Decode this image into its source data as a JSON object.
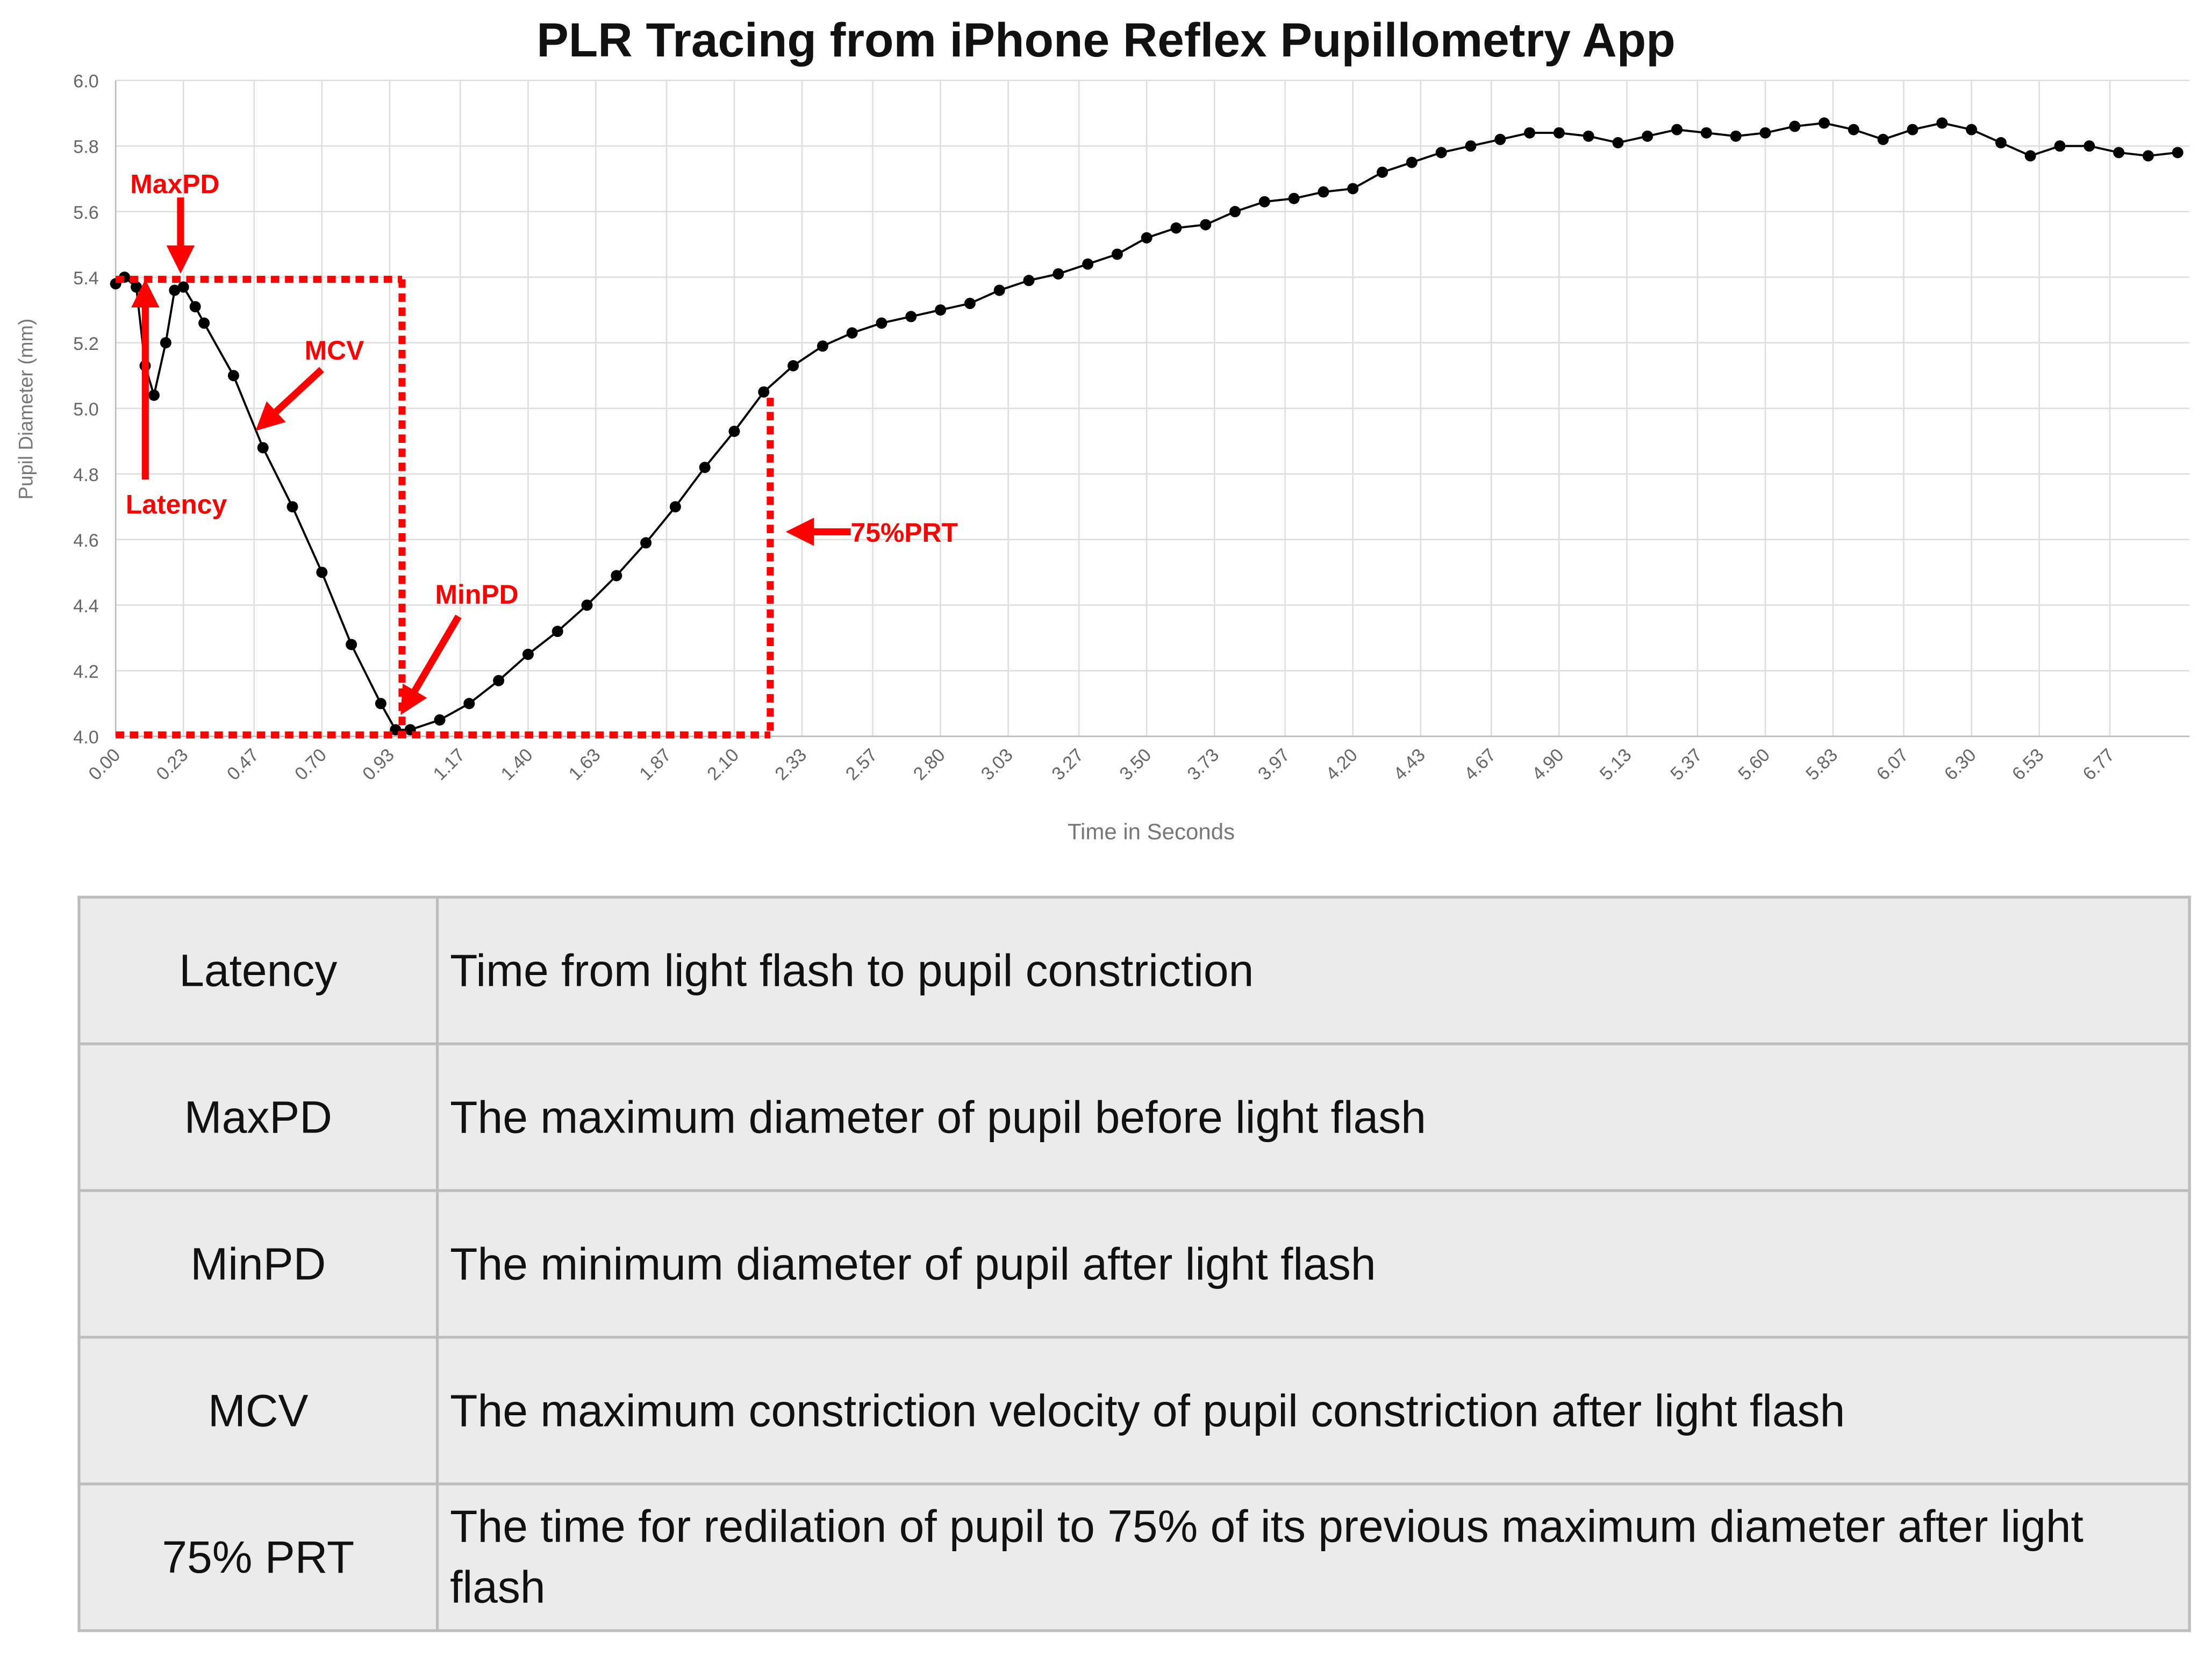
{
  "chart_data": {
    "type": "line",
    "title": "PLR Tracing from iPhone Reflex Pupillometry App",
    "xlabel": "Time in Seconds",
    "ylabel": "Pupil Diameter (mm)",
    "x": [
      0,
      0.03,
      0.07,
      0.1,
      0.13,
      0.17,
      0.2,
      0.23,
      0.27,
      0.3,
      0.4,
      0.5,
      0.6,
      0.7,
      0.8,
      0.9,
      0.95,
      1.0,
      1.1,
      1.2,
      1.3,
      1.4,
      1.5,
      1.6,
      1.7,
      1.8,
      1.9,
      2.0,
      2.1,
      2.2,
      2.3,
      2.4,
      2.5,
      2.6,
      2.7,
      2.8,
      2.9,
      3.0,
      3.1,
      3.2,
      3.3,
      3.4,
      3.5,
      3.6,
      3.7,
      3.8,
      3.9,
      4.0,
      4.1,
      4.2,
      4.3,
      4.4,
      4.5,
      4.6,
      4.7,
      4.8,
      4.9,
      5.0,
      5.1,
      5.2,
      5.3,
      5.4,
      5.5,
      5.6,
      5.7,
      5.8,
      5.9,
      6.0,
      6.1,
      6.2,
      6.3,
      6.4,
      6.5,
      6.6,
      6.7,
      6.8,
      6.9,
      7.0
    ],
    "series": [
      {
        "name": "Pupil Diameter",
        "color": "#000000",
        "values": [
          5.38,
          5.4,
          5.37,
          5.13,
          5.04,
          5.2,
          5.36,
          5.37,
          5.31,
          5.26,
          5.1,
          4.88,
          4.7,
          4.5,
          4.28,
          4.1,
          4.02,
          4.02,
          4.05,
          4.1,
          4.17,
          4.25,
          4.32,
          4.4,
          4.49,
          4.59,
          4.7,
          4.82,
          4.93,
          5.05,
          5.13,
          5.19,
          5.23,
          5.26,
          5.28,
          5.3,
          5.32,
          5.36,
          5.39,
          5.41,
          5.44,
          5.47,
          5.52,
          5.55,
          5.56,
          5.6,
          5.63,
          5.64,
          5.66,
          5.67,
          5.72,
          5.75,
          5.78,
          5.8,
          5.82,
          5.84,
          5.84,
          5.83,
          5.81,
          5.83,
          5.85,
          5.84,
          5.83,
          5.84,
          5.86,
          5.87,
          5.85,
          5.82,
          5.85,
          5.87,
          5.85,
          5.81,
          5.77,
          5.8,
          5.8,
          5.78,
          5.77,
          5.78
        ]
      }
    ],
    "xlim": [
      0,
      7.04
    ],
    "ylim": [
      4,
      6
    ],
    "xticks": [
      {
        "value": 0,
        "label": "0.00"
      },
      0.23,
      0.47,
      {
        "value": 0.7,
        "label": "0.70"
      },
      0.93,
      1.17,
      {
        "value": 1.4,
        "label": "1.40"
      },
      1.63,
      1.87,
      {
        "value": 2.1,
        "label": "2.10"
      },
      2.33,
      2.57,
      {
        "value": 2.8,
        "label": "2.80"
      },
      3.03,
      3.27,
      {
        "value": 3.5,
        "label": "3.50"
      },
      3.73,
      3.97,
      {
        "value": 4.2,
        "label": "4.20"
      },
      4.43,
      4.67,
      {
        "value": 4.9,
        "label": "4.90"
      },
      5.13,
      5.37,
      {
        "value": 5.6,
        "label": "5.60"
      },
      5.83,
      6.07,
      {
        "value": 6.3,
        "label": "6.30"
      },
      6.53,
      6.77
    ],
    "yticks": [
      {
        "value": 4,
        "label": "4.0"
      },
      4.2,
      4.4,
      4.6,
      4.8,
      {
        "value": 5,
        "label": "5.0"
      },
      5.2,
      5.4,
      5.6,
      5.8,
      {
        "value": 6,
        "label": "6.0"
      }
    ],
    "grid": true,
    "annotations": [
      "MaxPD",
      "Latency",
      "MCV",
      "MinPD",
      "75%PRT"
    ]
  },
  "table": {
    "rows": [
      [
        "Latency",
        "Time from light flash to pupil constriction"
      ],
      [
        "MaxPD",
        "The maximum diameter of pupil before light flash"
      ],
      [
        "MinPD",
        "The minimum diameter of pupil after light flash"
      ],
      [
        "MCV",
        "The maximum constriction velocity of pupil constriction after light flash"
      ],
      [
        "75% PRT",
        "The time for redilation of pupil to 75% of its previous maximum diameter after light flash"
      ]
    ]
  }
}
